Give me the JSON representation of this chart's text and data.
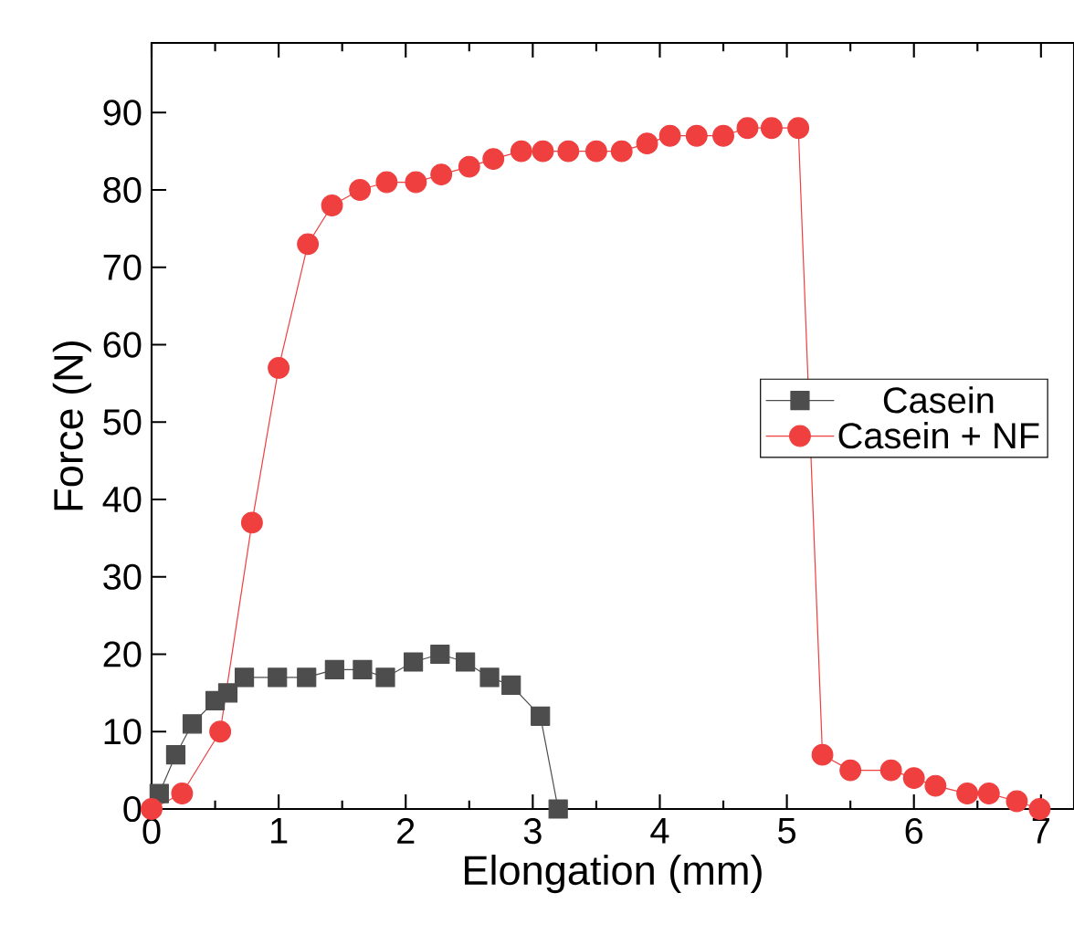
{
  "chart_data": {
    "type": "line",
    "xlabel": "Elongation (mm)",
    "ylabel": "Force (N)",
    "xlim": [
      0,
      7.26
    ],
    "ylim": [
      0,
      99
    ],
    "xticks": [
      0,
      1,
      2,
      3,
      4,
      5,
      6,
      7
    ],
    "yticks": [
      0,
      10,
      20,
      30,
      40,
      50,
      60,
      70,
      80,
      90
    ],
    "legend": "right",
    "grid": false,
    "line_style": "solid",
    "series": [
      {
        "name": "Casein",
        "color": "#4d4d4d",
        "marker": "square",
        "x": [
          0.06,
          0.19,
          0.32,
          0.5,
          0.6,
          0.73,
          0.99,
          1.22,
          1.44,
          1.66,
          1.84,
          2.06,
          2.27,
          2.47,
          2.66,
          2.83,
          3.06,
          3.2
        ],
        "values": [
          2,
          7,
          11,
          14,
          15,
          17,
          17,
          17,
          18,
          18,
          17,
          19,
          20,
          19,
          17,
          16,
          12,
          0
        ]
      },
      {
        "name": "Casein + NF",
        "color": "#ef3f3f",
        "marker": "circle",
        "x": [
          0,
          0.24,
          0.54,
          0.79,
          1.0,
          1.23,
          1.42,
          1.64,
          1.85,
          2.08,
          2.28,
          2.5,
          2.69,
          2.91,
          3.08,
          3.28,
          3.5,
          3.7,
          3.9,
          4.08,
          4.29,
          4.5,
          4.69,
          4.88,
          5.09,
          5.28,
          5.5,
          5.82,
          6.0,
          6.17,
          6.42,
          6.59,
          6.81,
          6.99
        ],
        "values": [
          0,
          2,
          10,
          37,
          57,
          73,
          78,
          80,
          81,
          81,
          82,
          83,
          84,
          85,
          85,
          85,
          85,
          85,
          86,
          87,
          87,
          87,
          88,
          88,
          88,
          7,
          5,
          5,
          4,
          3,
          2,
          2,
          1,
          0
        ]
      }
    ]
  }
}
